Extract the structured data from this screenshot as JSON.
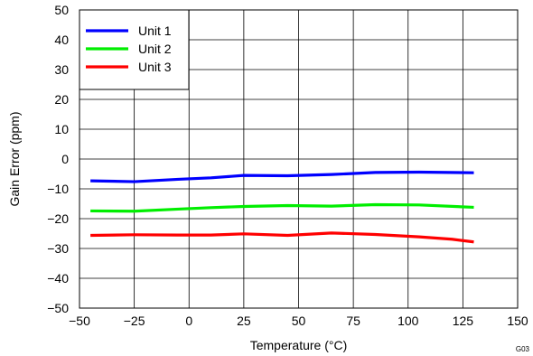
{
  "chart_data": {
    "type": "line",
    "xlabel": "Temperature (°C)",
    "ylabel": "Gain Error (ppm)",
    "xlim": [
      -50,
      150
    ],
    "ylim": [
      -50,
      50
    ],
    "xticks": [
      -50,
      -25,
      0,
      25,
      50,
      75,
      100,
      125,
      150
    ],
    "yticks": [
      -50,
      -40,
      -30,
      -20,
      -10,
      0,
      10,
      20,
      30,
      40,
      50
    ],
    "grid": true,
    "legend_position": "top-left",
    "figure_id": "G03",
    "series": [
      {
        "name": "Unit 1",
        "color": "#0000ff",
        "x": [
          -45,
          -25,
          -5,
          10,
          25,
          45,
          65,
          85,
          105,
          130
        ],
        "y": [
          -7.3,
          -7.6,
          -6.8,
          -6.3,
          -5.5,
          -5.6,
          -5.2,
          -4.5,
          -4.4,
          -4.6
        ]
      },
      {
        "name": "Unit 2",
        "color": "#00ee00",
        "x": [
          -45,
          -25,
          -5,
          10,
          25,
          45,
          65,
          85,
          105,
          130
        ],
        "y": [
          -17.4,
          -17.5,
          -16.8,
          -16.3,
          -15.9,
          -15.6,
          -15.8,
          -15.3,
          -15.4,
          -16.2
        ]
      },
      {
        "name": "Unit 3",
        "color": "#ff0000",
        "x": [
          -45,
          -25,
          -5,
          10,
          25,
          45,
          65,
          85,
          105,
          120,
          130
        ],
        "y": [
          -25.6,
          -25.4,
          -25.5,
          -25.5,
          -25.1,
          -25.6,
          -24.8,
          -25.3,
          -26.1,
          -26.9,
          -27.8
        ]
      }
    ]
  }
}
